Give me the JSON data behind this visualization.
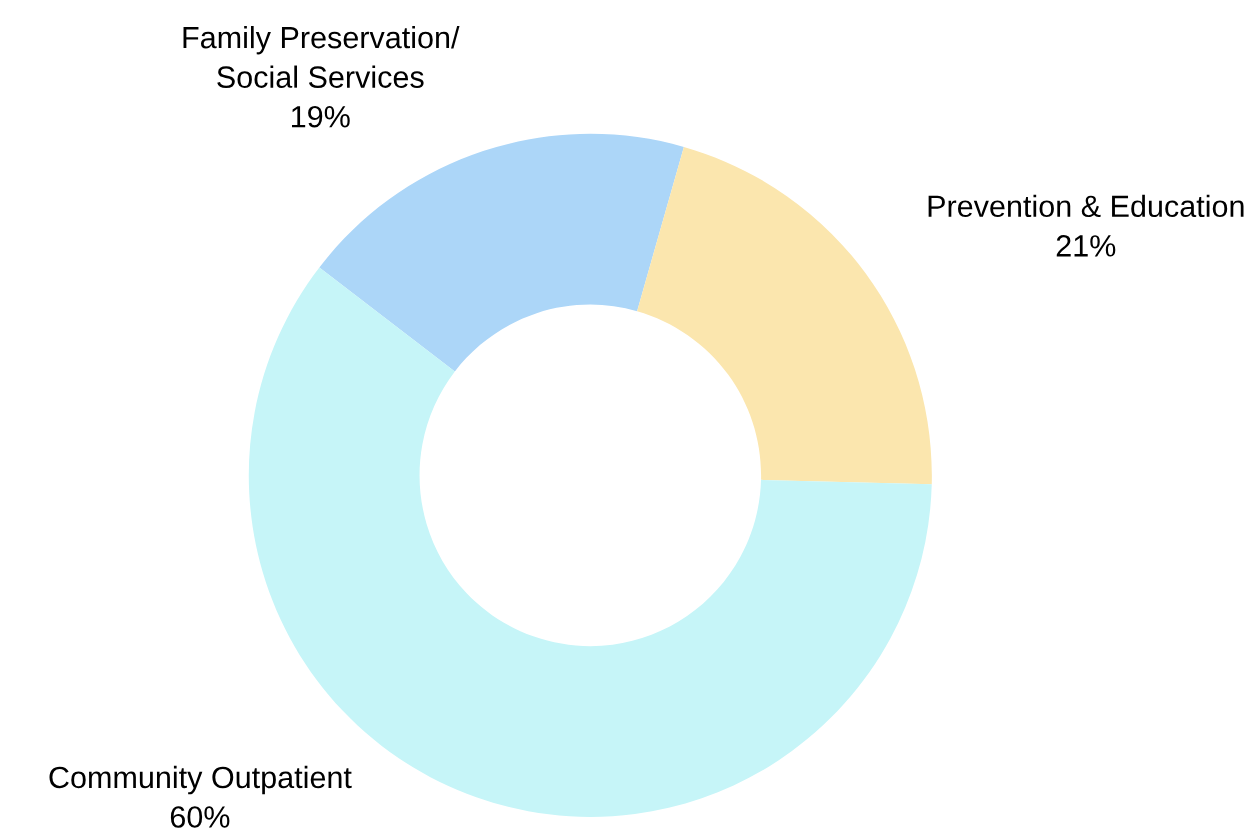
{
  "chart_data": {
    "type": "donut",
    "categories": [
      "Family Preservation/\nSocial Services",
      "Prevention & Education",
      "Community Outpatient"
    ],
    "values": [
      19,
      21,
      60
    ],
    "value_labels": [
      "19%",
      "21%",
      "60%"
    ],
    "colors": [
      "#acd6f8",
      "#fbe6ae",
      "#c6f5f8"
    ]
  }
}
